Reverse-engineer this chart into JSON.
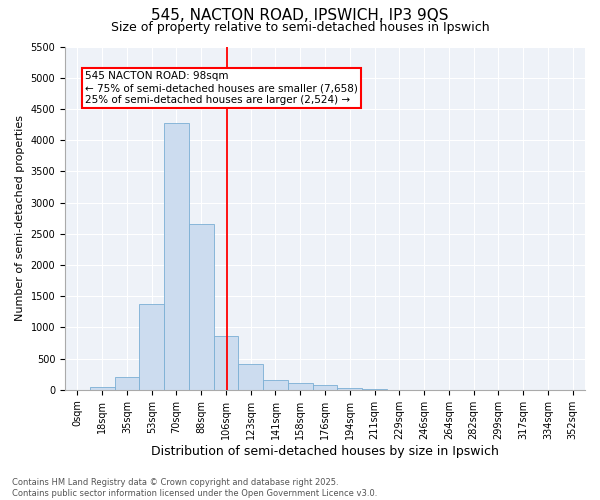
{
  "title1": "545, NACTON ROAD, IPSWICH, IP3 9QS",
  "title2": "Size of property relative to semi-detached houses in Ipswich",
  "xlabel": "Distribution of semi-detached houses by size in Ipswich",
  "ylabel": "Number of semi-detached properties",
  "bin_labels": [
    "0sqm",
    "18sqm",
    "35sqm",
    "53sqm",
    "70sqm",
    "88sqm",
    "106sqm",
    "123sqm",
    "141sqm",
    "158sqm",
    "176sqm",
    "194sqm",
    "211sqm",
    "229sqm",
    "246sqm",
    "264sqm",
    "282sqm",
    "299sqm",
    "317sqm",
    "334sqm",
    "352sqm"
  ],
  "bar_heights": [
    5,
    50,
    200,
    1380,
    4270,
    2650,
    870,
    420,
    160,
    110,
    70,
    30,
    10,
    5,
    3,
    2,
    1,
    1,
    0,
    0,
    0
  ],
  "bar_color": "#ccdcef",
  "bar_edge_color": "#7bafd4",
  "vline_color": "red",
  "annotation_text": "545 NACTON ROAD: 98sqm\n← 75% of semi-detached houses are smaller (7,658)\n25% of semi-detached houses are larger (2,524) →",
  "ylim": [
    0,
    5500
  ],
  "yticks": [
    0,
    500,
    1000,
    1500,
    2000,
    2500,
    3000,
    3500,
    4000,
    4500,
    5000,
    5500
  ],
  "background_color": "#eef2f8",
  "grid_color": "#ffffff",
  "footer": "Contains HM Land Registry data © Crown copyright and database right 2025.\nContains public sector information licensed under the Open Government Licence v3.0.",
  "title1_fontsize": 11,
  "title2_fontsize": 9,
  "xlabel_fontsize": 9,
  "ylabel_fontsize": 8,
  "tick_fontsize": 7,
  "footer_fontsize": 6,
  "ann_fontsize": 7.5,
  "vline_pos": 6.05
}
